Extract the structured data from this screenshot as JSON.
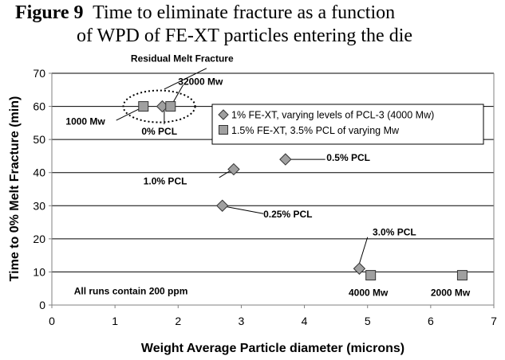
{
  "chart_data": {
    "type": "scatter",
    "title_bold": "Figure 9",
    "title_line1": "Time to eliminate fracture as a function",
    "title_line2": "of WPD of FE-XT particles entering the die",
    "xlabel": "Weight Average Particle diameter (microns)",
    "ylabel": "Time to 0% Melt Fracture (min)",
    "xlim": [
      0,
      7
    ],
    "ylim": [
      0,
      70
    ],
    "xticks": [
      0,
      1,
      2,
      3,
      4,
      5,
      6,
      7
    ],
    "yticks": [
      0,
      10,
      20,
      30,
      40,
      50,
      60,
      70
    ],
    "grid": "horizontal",
    "legend_position": "right",
    "series": [
      {
        "name": "1% FE-XT, varying levels of PCL-3 (4000 Mw)",
        "marker": "diamond",
        "color": "#a0a0a0",
        "points": [
          {
            "x": 1.75,
            "y": 60
          },
          {
            "x": 2.88,
            "y": 41
          },
          {
            "x": 3.7,
            "y": 44
          },
          {
            "x": 2.7,
            "y": 30
          },
          {
            "x": 4.87,
            "y": 11
          }
        ]
      },
      {
        "name": "1.5% FE-XT, 3.5% PCL of varying Mw",
        "marker": "square",
        "color": "#a0a0a0",
        "points": [
          {
            "x": 1.45,
            "y": 60
          },
          {
            "x": 1.88,
            "y": 60
          },
          {
            "x": 5.05,
            "y": 9
          },
          {
            "x": 6.5,
            "y": 9
          }
        ]
      }
    ],
    "annotations": [
      {
        "text": "Residual Melt Fracture",
        "x": 1.25,
        "y": 73.5
      },
      {
        "text": "32000 Mw",
        "x": 2.0,
        "y": 66.5
      },
      {
        "text": "1000 Mw",
        "x": 0.22,
        "y": 54.5
      },
      {
        "text": "0% PCL",
        "x": 1.42,
        "y": 51.5
      },
      {
        "text": "1.0% PCL",
        "x": 1.45,
        "y": 36.5
      },
      {
        "text": "0.5% PCL",
        "x": 4.35,
        "y": 43.5
      },
      {
        "text": "0.25% PCL",
        "x": 3.35,
        "y": 26.5
      },
      {
        "text": "3.0% PCL",
        "x": 5.08,
        "y": 21.0
      },
      {
        "text": "4000 Mw",
        "x": 4.7,
        "y": 2.8
      },
      {
        "text": "2000 Mw",
        "x": 6.0,
        "y": 2.8
      },
      {
        "text": "All runs contain 200 ppm",
        "x": 0.35,
        "y": 3.2
      }
    ]
  }
}
